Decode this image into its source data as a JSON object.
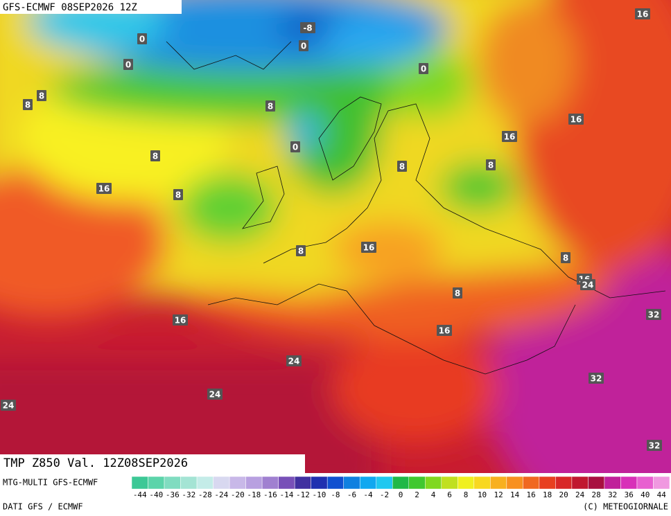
{
  "header": {
    "title": "GFS-ECMWF 08SEP2026 12Z",
    "field": "TMP Z850 Val. 12Z08SEP2026"
  },
  "map_labels": [
    16,
    -8,
    0,
    0,
    0,
    0,
    8,
    8,
    8,
    16,
    16,
    0,
    8,
    8,
    8,
    16,
    8,
    16,
    8,
    8,
    16,
    24,
    8,
    32,
    16,
    16,
    24,
    32,
    24,
    24,
    32
  ],
  "legend": {
    "ticks": [
      -44,
      -40,
      -36,
      -32,
      -28,
      -24,
      -20,
      -18,
      -16,
      -14,
      -12,
      -10,
      -8,
      -6,
      -4,
      -2,
      0,
      2,
      4,
      6,
      8,
      10,
      12,
      14,
      16,
      18,
      20,
      24,
      28,
      32,
      36,
      40,
      44
    ],
    "colors": [
      "#3cc896",
      "#5cd4aa",
      "#80dcc0",
      "#a4e4d4",
      "#c4ece8",
      "#d8d8f0",
      "#c8b8e8",
      "#b8a0e0",
      "#a080d0",
      "#7850b8",
      "#4030a0",
      "#2030b0",
      "#1050d0",
      "#1080e0",
      "#10a8f0",
      "#20c8f0",
      "#20b848",
      "#40c830",
      "#80d820",
      "#c0e020",
      "#f0f020",
      "#f8d820",
      "#f8b020",
      "#f89020",
      "#f06820",
      "#e84020",
      "#d82828",
      "#c01830",
      "#a81040",
      "#c0209a",
      "#d830b8",
      "#e860d0",
      "#f098e0"
    ]
  },
  "footer": {
    "model": "MTG-MULTI GFS-ECMWF",
    "source": "DATI GFS / ECMWF",
    "credit": "(C) METEOGIORNALE"
  }
}
